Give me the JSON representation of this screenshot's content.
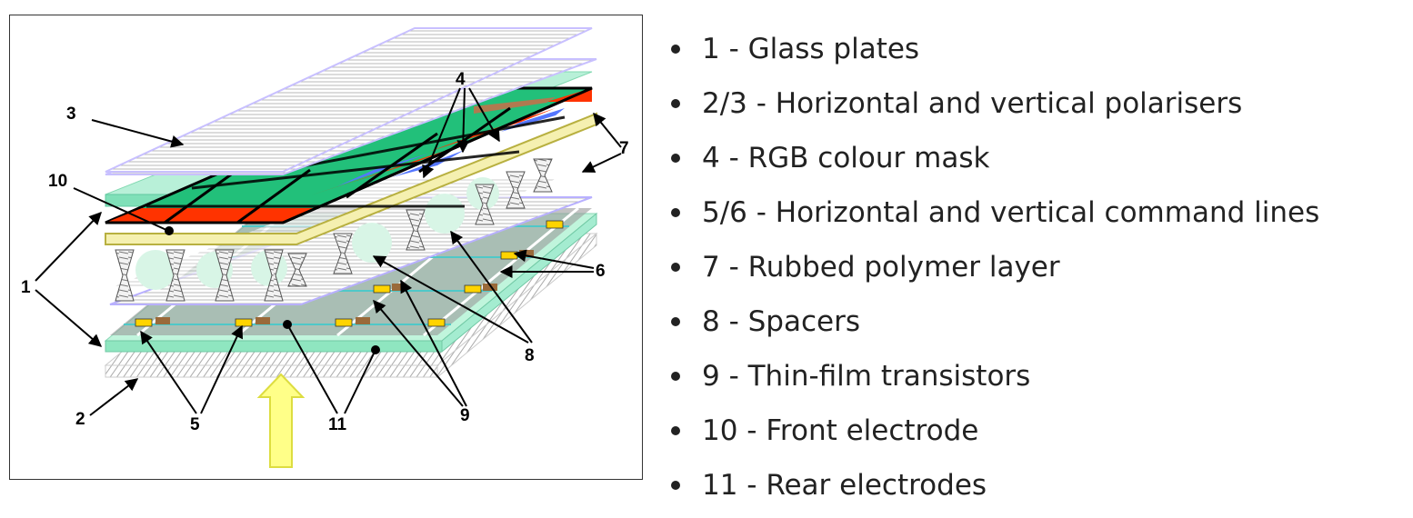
{
  "diagram": {
    "callouts": [
      "1",
      "2",
      "3",
      "4",
      "5",
      "6",
      "7",
      "8",
      "9",
      "10",
      "11"
    ]
  },
  "legend": [
    "1 - Glass plates",
    "2/3 - Horizontal and vertical polarisers",
    "4 - RGB colour mask",
    "5/6 - Horizontal and vertical command lines",
    "7 - Rubbed polymer layer",
    "8 - Spacers",
    "9 - Thin-film transistors",
    "10 - Front electrode",
    "11 - Rear electrodes"
  ],
  "colors": {
    "red": "#ff3300",
    "green": "#22c07a",
    "blue": "#5577ff",
    "brown": "#b07a50",
    "glass": "#a8f0d0",
    "electrode": "#f5f0b0",
    "polymer": "#c8c0ff",
    "arrow": "#ffff88"
  }
}
